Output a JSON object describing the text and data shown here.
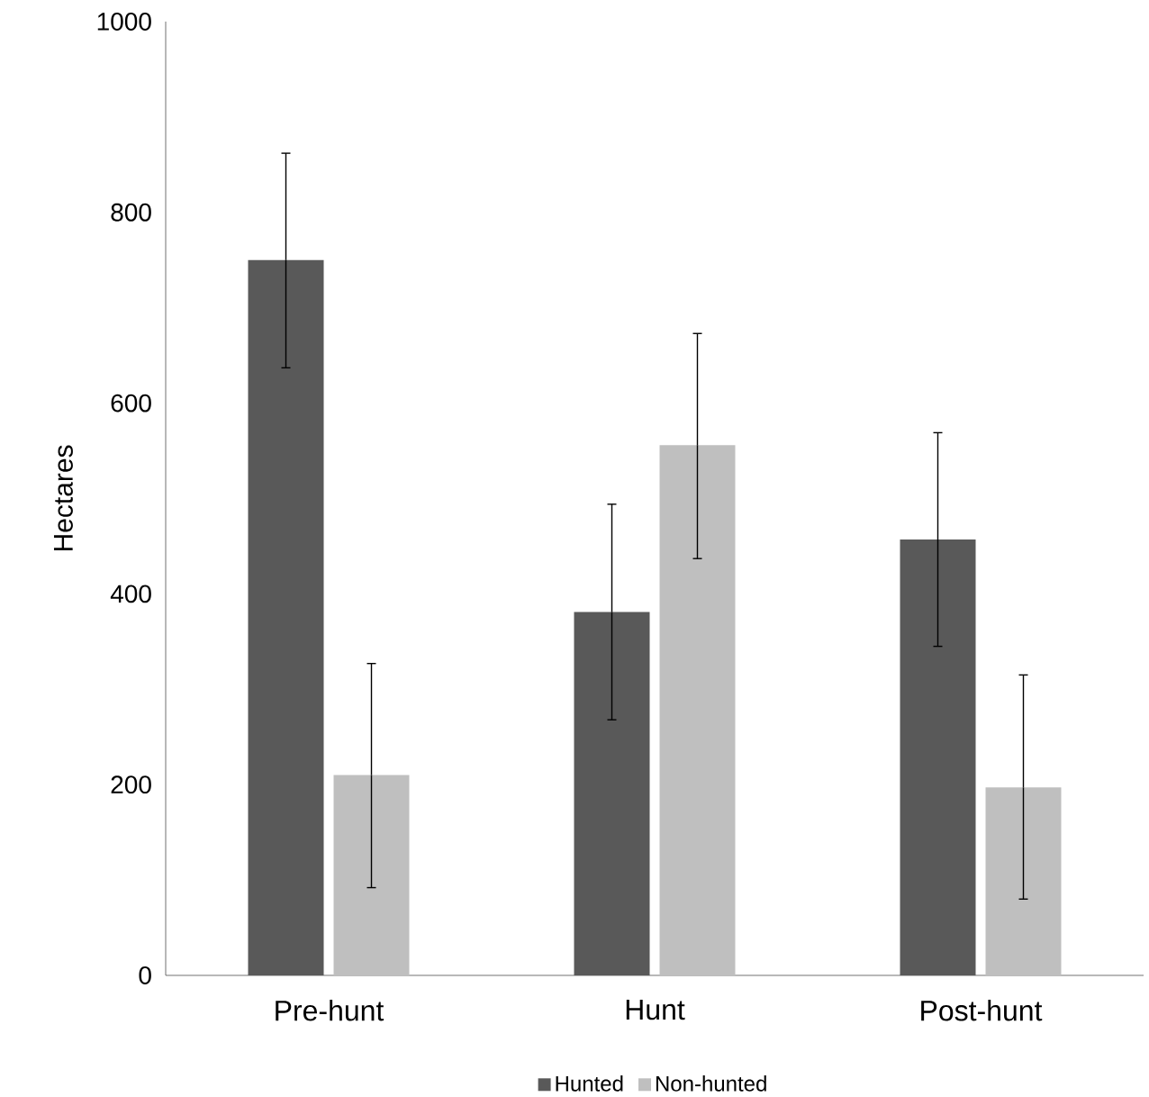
{
  "chart_data": {
    "type": "bar",
    "ylabel": "Hectares",
    "categories": [
      "Pre-hunt",
      "Hunt",
      "Post-hunt"
    ],
    "series": [
      {
        "name": "Hunted",
        "color": "#595959",
        "values": [
          750,
          381,
          457
        ],
        "errors": [
          [
            637,
            862
          ],
          [
            268,
            494
          ],
          [
            345,
            569
          ]
        ]
      },
      {
        "name": "Non-hunted",
        "color": "#bfbfbf",
        "values": [
          210,
          556,
          197
        ],
        "errors": [
          [
            92,
            327
          ],
          [
            437,
            673
          ],
          [
            80,
            315
          ]
        ]
      }
    ],
    "ylim": [
      0,
      1000
    ],
    "yticks": [
      0,
      200,
      400,
      600,
      800,
      1000
    ],
    "grid": false,
    "legend": "bottom"
  }
}
